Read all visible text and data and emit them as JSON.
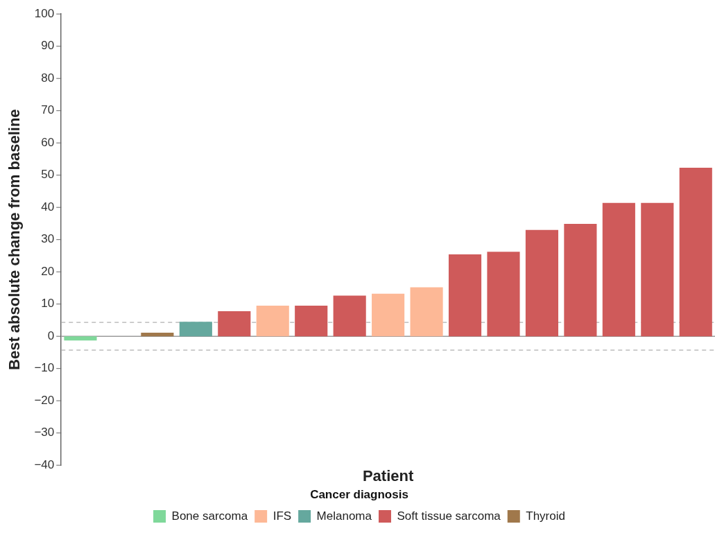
{
  "chart_data": {
    "type": "bar",
    "xlabel": "Patient",
    "ylabel": "Best absolute change from baseline",
    "legend_title": "Cancer diagnosis",
    "categories": [
      null,
      null,
      null,
      null,
      null,
      null,
      null,
      null,
      null,
      null,
      null,
      null,
      null,
      null,
      null,
      null,
      null
    ],
    "series": [
      {
        "name": "Bone sarcoma",
        "color": "#7fd89a",
        "values": [
          -1.3,
          null,
          null,
          null,
          null,
          null,
          null,
          null,
          null,
          null,
          null,
          null,
          null,
          null,
          null,
          null,
          null
        ]
      },
      {
        "name": "IFS",
        "color": "#fdb896",
        "values": [
          null,
          null,
          null,
          null,
          null,
          9.5,
          null,
          null,
          13.2,
          15.2,
          null,
          null,
          null,
          null,
          null,
          null,
          null
        ]
      },
      {
        "name": "Melanoma",
        "color": "#65a89e",
        "values": [
          null,
          null,
          null,
          4.5,
          null,
          null,
          null,
          null,
          null,
          null,
          null,
          null,
          null,
          null,
          null,
          null,
          null
        ]
      },
      {
        "name": "Soft tissue sarcoma",
        "color": "#cf5a5a",
        "values": [
          null,
          null,
          null,
          null,
          7.8,
          null,
          9.5,
          12.6,
          null,
          null,
          25.4,
          26.2,
          33.0,
          34.9,
          41.4,
          41.4,
          52.3
        ]
      },
      {
        "name": "Thyroid",
        "color": "#a0784b",
        "values": [
          null,
          null,
          1.1,
          null,
          null,
          null,
          null,
          null,
          null,
          null,
          null,
          null,
          null,
          null,
          null,
          null,
          null
        ]
      }
    ],
    "ylim": [
      -40,
      100
    ],
    "yticks": [
      {
        "value": -40,
        "label": "−40"
      },
      {
        "value": -30,
        "label": "−30"
      },
      {
        "value": -20,
        "label": "−20"
      },
      {
        "value": -10,
        "label": "−10"
      },
      0,
      10,
      20,
      30,
      40,
      50,
      60,
      70,
      80,
      90,
      100
    ],
    "ref_lines": [
      {
        "axis": "y",
        "value": 4.3,
        "color": "#b0b0b0",
        "line_style": "dashed"
      },
      {
        "axis": "y",
        "value": -4.3,
        "color": "#b0b0b0",
        "line_style": "dashed"
      }
    ],
    "tick_labels": "y",
    "legend": "bottom"
  }
}
